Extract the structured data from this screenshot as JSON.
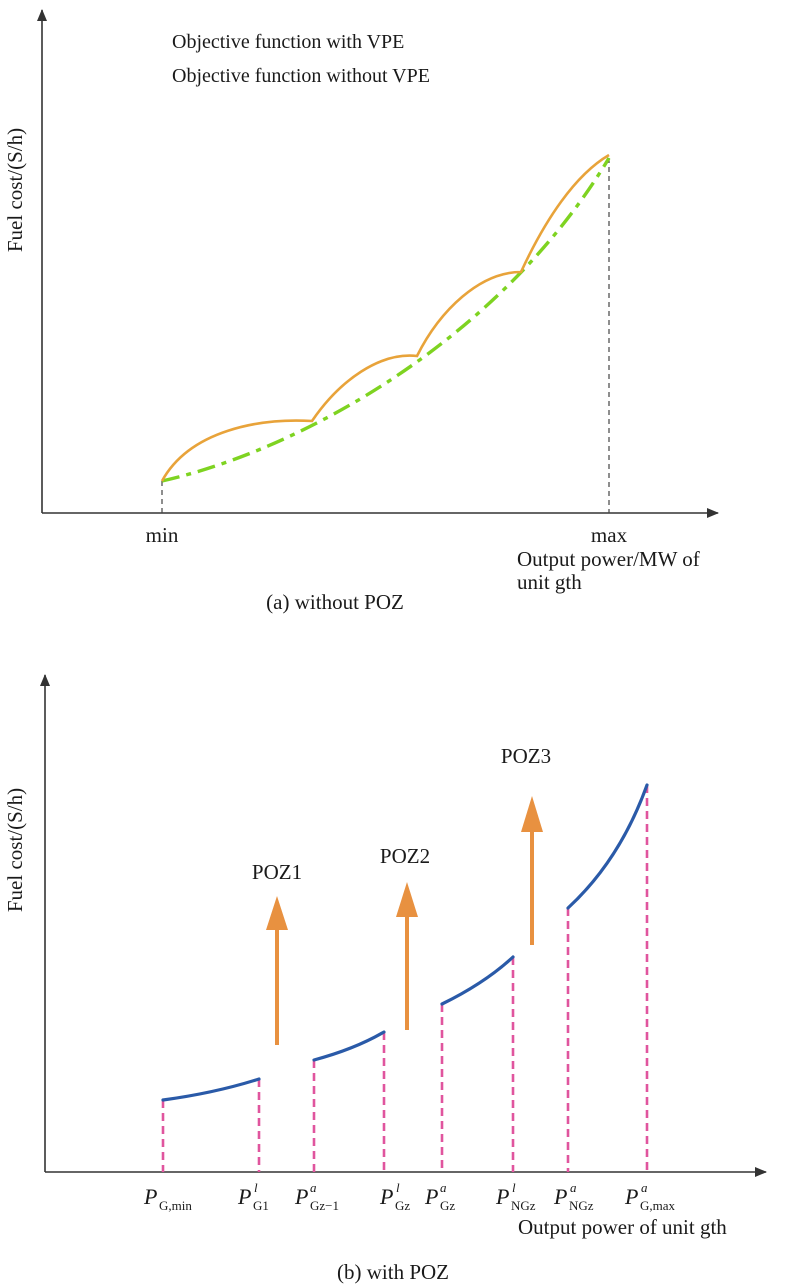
{
  "panel_a": {
    "caption": "(a) without POZ",
    "ylabel": "Fuel cost/(S/h)",
    "xlabel_line1": "Output power/MW of",
    "xlabel_line2": "unit gth",
    "tick_min": "min",
    "tick_max": "max",
    "legend": {
      "vpe": "Objective function with VPE",
      "no_vpe": "Objective function without VPE"
    },
    "colors": {
      "vpe": "#e8a33a",
      "no_vpe": "#7ed321"
    }
  },
  "panel_b": {
    "caption": "(b) with POZ",
    "ylabel": "Fuel cost/(S/h)",
    "xlabel": "Output power of unit gth",
    "zones": [
      {
        "label": "POZ1"
      },
      {
        "label": "POZ2"
      },
      {
        "label": "POZ3"
      }
    ],
    "ticks": [
      {
        "p": "P",
        "sup": "",
        "sub": "G,min"
      },
      {
        "p": "P",
        "sup": "l",
        "sub": "G1"
      },
      {
        "p": "P",
        "sup": "a",
        "sub": "Gz−1"
      },
      {
        "p": "P",
        "sup": "l",
        "sub": "Gz"
      },
      {
        "p": "P",
        "sup": "a",
        "sub": "Gz"
      },
      {
        "p": "P",
        "sup": "l",
        "sub": "NGz"
      },
      {
        "p": "P",
        "sup": "a",
        "sub": "NGz"
      },
      {
        "p": "P",
        "sup": "a",
        "sub": "G,max"
      }
    ],
    "colors": {
      "curve": "#2a5aa8",
      "bounds": "#e0559e",
      "arrows": "#e89140"
    }
  }
}
